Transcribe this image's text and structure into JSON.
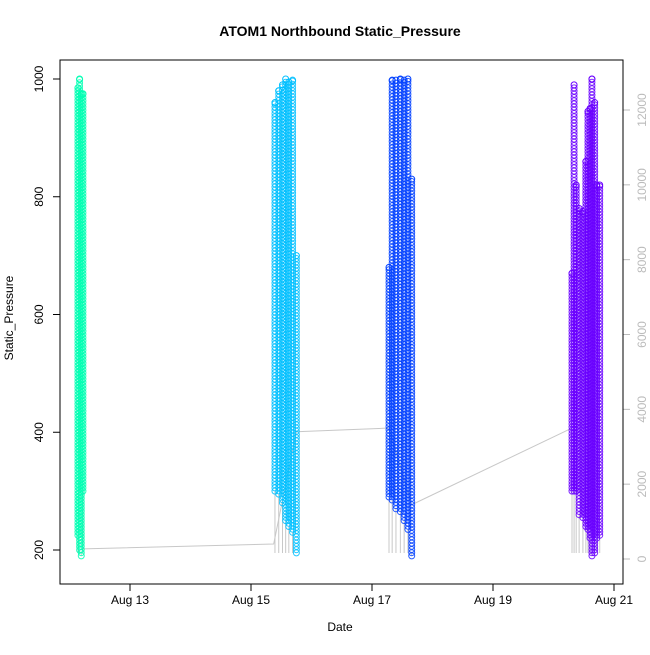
{
  "chart_data": {
    "type": "scatter",
    "title": "ATOM1 Northbound Static_Pressure",
    "xlabel": "Date",
    "ylabel": "Static_Pressure",
    "xlim": [
      "Aug 12 00:00",
      "Aug 21 03:00"
    ],
    "ylim": [
      175,
      1030
    ],
    "y2lim": [
      -400,
      13500
    ],
    "x_ticks": [
      "Aug 13",
      "Aug 15",
      "Aug 17",
      "Aug 19",
      "Aug 21"
    ],
    "x_tick_values": [
      "Aug 13 00:00",
      "Aug 15 00:00",
      "Aug 17 00:00",
      "Aug 19 00:00",
      "Aug 21 00:00"
    ],
    "y_ticks": [
      200,
      400,
      600,
      800,
      1000
    ],
    "y2_ticks": [
      0,
      2000,
      4000,
      6000,
      8000,
      10000,
      12000
    ],
    "y2_color": "#bbbbbb",
    "grid": false,
    "marker": "open-circle",
    "series": [
      {
        "color": "#00ffb3",
        "columns": [
          {
            "x": "Aug 12 03:20",
            "y": [
              225,
              985
            ]
          },
          {
            "x": "Aug 12 04:00",
            "y": [
              200,
              1000
            ]
          },
          {
            "x": "Aug 12 04:40",
            "y": [
              190,
              975
            ]
          },
          {
            "x": "Aug 12 05:20",
            "y": [
              300,
              975
            ]
          }
        ]
      },
      {
        "color": "#00bfff",
        "columns": [
          {
            "x": "Aug 15 09:30",
            "y": [
              300,
              960
            ]
          },
          {
            "x": "Aug 15 11:00",
            "y": [
              295,
              980
            ]
          },
          {
            "x": "Aug 15 12:30",
            "y": [
              280,
              990
            ]
          },
          {
            "x": "Aug 15 13:45",
            "y": [
              250,
              1000
            ]
          },
          {
            "x": "Aug 15 15:00",
            "y": [
              240,
              995
            ]
          },
          {
            "x": "Aug 15 16:30",
            "y": [
              230,
              998
            ]
          },
          {
            "x": "Aug 15 18:00",
            "y": [
              195,
              700
            ]
          }
        ]
      },
      {
        "color": "#0040ff",
        "columns": [
          {
            "x": "Aug 17 06:45",
            "y": [
              290,
              680
            ]
          },
          {
            "x": "Aug 17 08:00",
            "y": [
              285,
              998
            ]
          },
          {
            "x": "Aug 17 09:30",
            "y": [
              270,
              998
            ]
          },
          {
            "x": "Aug 17 11:15",
            "y": [
              265,
              1000
            ]
          },
          {
            "x": "Aug 17 12:45",
            "y": [
              250,
              998
            ]
          },
          {
            "x": "Aug 17 14:15",
            "y": [
              235,
              1000
            ]
          },
          {
            "x": "Aug 17 15:45",
            "y": [
              190,
              830
            ]
          }
        ]
      },
      {
        "color": "#6a00ff",
        "columns": [
          {
            "x": "Aug 20 07:20",
            "y": [
              300,
              670
            ]
          },
          {
            "x": "Aug 20 08:10",
            "y": [
              300,
              990
            ]
          },
          {
            "x": "Aug 20 09:00",
            "y": [
              300,
              820
            ]
          },
          {
            "x": "Aug 20 10:10",
            "y": [
              260,
              780
            ]
          },
          {
            "x": "Aug 20 11:40",
            "y": [
              255,
              775
            ]
          },
          {
            "x": "Aug 20 12:50",
            "y": [
              240,
              860
            ]
          },
          {
            "x": "Aug 20 13:40",
            "y": [
              235,
              945
            ]
          },
          {
            "x": "Aug 20 14:30",
            "y": [
              220,
              950
            ]
          },
          {
            "x": "Aug 20 15:15",
            "y": [
              190,
              1000
            ]
          },
          {
            "x": "Aug 20 16:20",
            "y": [
              195,
              960
            ]
          },
          {
            "x": "Aug 20 17:10",
            "y": [
              220,
              820
            ]
          },
          {
            "x": "Aug 20 18:20",
            "y": [
              225,
              820
            ]
          }
        ]
      }
    ],
    "secondary_line": {
      "color": "#c8c8c8",
      "axis": "right",
      "points": [
        {
          "x": "Aug 12 05:20",
          "y": 270
        },
        {
          "x": "Aug 15 09:00",
          "y": 400
        },
        {
          "x": "Aug 15 18:00",
          "y": 3400
        },
        {
          "x": "Aug 17 06:45",
          "y": 3500
        },
        {
          "x": "Aug 17 15:45",
          "y": 1450
        },
        {
          "x": "Aug 20 07:20",
          "y": 3500
        }
      ]
    }
  }
}
